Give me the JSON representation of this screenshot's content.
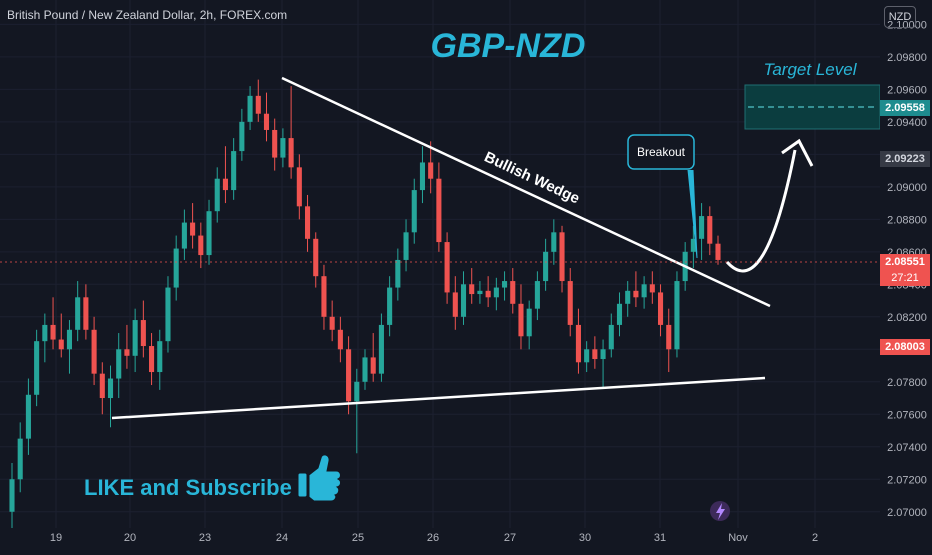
{
  "header": {
    "symbol_title": "British Pound / New Zealand Dollar, 2h, FOREX.com",
    "currency_button": "NZD"
  },
  "chart_data": {
    "type": "candlestick",
    "title": "GBP-NZD",
    "ylim": [
      2.069,
      2.1015
    ],
    "y_ticks": [
      "2.10000",
      "2.09800",
      "2.09600",
      "2.09400",
      "2.09200",
      "2.09000",
      "2.08800",
      "2.08600",
      "2.08400",
      "2.08200",
      "2.08000",
      "2.07800",
      "2.07600",
      "2.07400",
      "2.07200",
      "2.07000"
    ],
    "x_ticks": [
      "19",
      "20",
      "23",
      "24",
      "25",
      "26",
      "27",
      "30",
      "31",
      "Nov",
      "2"
    ],
    "price_tags": {
      "target": "2.09558",
      "prev": "2.09223",
      "current": "2.08551",
      "countdown": "27:21",
      "low": "2.08003"
    },
    "annotations": {
      "wedge": "Bullish Wedge",
      "breakout": "Breakout",
      "target": "Target Level",
      "cta": "LIKE and Subscribe"
    },
    "colors": {
      "up": "#26a69a",
      "down": "#ef5350",
      "title": "#29b6d8",
      "background": "#131722",
      "target_zone": "#0b3d3f"
    },
    "candles": [
      {
        "o": 2.07,
        "h": 2.073,
        "l": 2.069,
        "c": 2.072
      },
      {
        "o": 2.072,
        "h": 2.0755,
        "l": 2.0712,
        "c": 2.0745
      },
      {
        "o": 2.0745,
        "h": 2.0782,
        "l": 2.0735,
        "c": 2.0772
      },
      {
        "o": 2.0772,
        "h": 2.0812,
        "l": 2.0765,
        "c": 2.0805
      },
      {
        "o": 2.0805,
        "h": 2.0822,
        "l": 2.0792,
        "c": 2.0815
      },
      {
        "o": 2.0815,
        "h": 2.0832,
        "l": 2.08,
        "c": 2.0806
      },
      {
        "o": 2.0806,
        "h": 2.0822,
        "l": 2.0795,
        "c": 2.08
      },
      {
        "o": 2.08,
        "h": 2.0818,
        "l": 2.0785,
        "c": 2.0812
      },
      {
        "o": 2.0812,
        "h": 2.0842,
        "l": 2.0805,
        "c": 2.0832
      },
      {
        "o": 2.0832,
        "h": 2.084,
        "l": 2.0806,
        "c": 2.0812
      },
      {
        "o": 2.0812,
        "h": 2.082,
        "l": 2.0778,
        "c": 2.0785
      },
      {
        "o": 2.0785,
        "h": 2.0792,
        "l": 2.076,
        "c": 2.077
      },
      {
        "o": 2.077,
        "h": 2.079,
        "l": 2.0752,
        "c": 2.0782
      },
      {
        "o": 2.0782,
        "h": 2.081,
        "l": 2.077,
        "c": 2.08
      },
      {
        "o": 2.08,
        "h": 2.0815,
        "l": 2.0788,
        "c": 2.0796
      },
      {
        "o": 2.0796,
        "h": 2.0825,
        "l": 2.0786,
        "c": 2.0818
      },
      {
        "o": 2.0818,
        "h": 2.083,
        "l": 2.0795,
        "c": 2.0802
      },
      {
        "o": 2.0802,
        "h": 2.081,
        "l": 2.0778,
        "c": 2.0786
      },
      {
        "o": 2.0786,
        "h": 2.0812,
        "l": 2.0775,
        "c": 2.0805
      },
      {
        "o": 2.0805,
        "h": 2.0845,
        "l": 2.0798,
        "c": 2.0838
      },
      {
        "o": 2.0838,
        "h": 2.087,
        "l": 2.083,
        "c": 2.0862
      },
      {
        "o": 2.0862,
        "h": 2.0886,
        "l": 2.0855,
        "c": 2.0878
      },
      {
        "o": 2.0878,
        "h": 2.089,
        "l": 2.0862,
        "c": 2.087
      },
      {
        "o": 2.087,
        "h": 2.0878,
        "l": 2.085,
        "c": 2.0858
      },
      {
        "o": 2.0858,
        "h": 2.0892,
        "l": 2.0852,
        "c": 2.0885
      },
      {
        "o": 2.0885,
        "h": 2.0912,
        "l": 2.0878,
        "c": 2.0905
      },
      {
        "o": 2.0905,
        "h": 2.0925,
        "l": 2.089,
        "c": 2.0898
      },
      {
        "o": 2.0898,
        "h": 2.093,
        "l": 2.0892,
        "c": 2.0922
      },
      {
        "o": 2.0922,
        "h": 2.0948,
        "l": 2.0916,
        "c": 2.094
      },
      {
        "o": 2.094,
        "h": 2.0962,
        "l": 2.0935,
        "c": 2.0956
      },
      {
        "o": 2.0956,
        "h": 2.0966,
        "l": 2.094,
        "c": 2.0945
      },
      {
        "o": 2.0945,
        "h": 2.0958,
        "l": 2.0928,
        "c": 2.0935
      },
      {
        "o": 2.0935,
        "h": 2.0942,
        "l": 2.091,
        "c": 2.0918
      },
      {
        "o": 2.0918,
        "h": 2.0936,
        "l": 2.0912,
        "c": 2.093
      },
      {
        "o": 2.093,
        "h": 2.0962,
        "l": 2.0905,
        "c": 2.0912
      },
      {
        "o": 2.0912,
        "h": 2.092,
        "l": 2.088,
        "c": 2.0888
      },
      {
        "o": 2.0888,
        "h": 2.0895,
        "l": 2.086,
        "c": 2.0868
      },
      {
        "o": 2.0868,
        "h": 2.0872,
        "l": 2.0838,
        "c": 2.0845
      },
      {
        "o": 2.0845,
        "h": 2.0852,
        "l": 2.0812,
        "c": 2.082
      },
      {
        "o": 2.082,
        "h": 2.083,
        "l": 2.0805,
        "c": 2.0812
      },
      {
        "o": 2.0812,
        "h": 2.082,
        "l": 2.0792,
        "c": 2.08
      },
      {
        "o": 2.08,
        "h": 2.0808,
        "l": 2.076,
        "c": 2.0768
      },
      {
        "o": 2.0768,
        "h": 2.0788,
        "l": 2.0736,
        "c": 2.078
      },
      {
        "o": 2.078,
        "h": 2.08,
        "l": 2.0775,
        "c": 2.0795
      },
      {
        "o": 2.0795,
        "h": 2.081,
        "l": 2.078,
        "c": 2.0785
      },
      {
        "o": 2.0785,
        "h": 2.0822,
        "l": 2.078,
        "c": 2.0815
      },
      {
        "o": 2.0815,
        "h": 2.0845,
        "l": 2.0808,
        "c": 2.0838
      },
      {
        "o": 2.0838,
        "h": 2.0862,
        "l": 2.083,
        "c": 2.0855
      },
      {
        "o": 2.0855,
        "h": 2.088,
        "l": 2.0848,
        "c": 2.0872
      },
      {
        "o": 2.0872,
        "h": 2.0905,
        "l": 2.0865,
        "c": 2.0898
      },
      {
        "o": 2.0898,
        "h": 2.0925,
        "l": 2.089,
        "c": 2.0915
      },
      {
        "o": 2.0915,
        "h": 2.0928,
        "l": 2.0896,
        "c": 2.0905
      },
      {
        "o": 2.0905,
        "h": 2.0915,
        "l": 2.086,
        "c": 2.0866
      },
      {
        "o": 2.0866,
        "h": 2.0872,
        "l": 2.0828,
        "c": 2.0835
      },
      {
        "o": 2.0835,
        "h": 2.0845,
        "l": 2.0812,
        "c": 2.082
      },
      {
        "o": 2.082,
        "h": 2.0848,
        "l": 2.0815,
        "c": 2.084
      },
      {
        "o": 2.084,
        "h": 2.085,
        "l": 2.0828,
        "c": 2.0834
      },
      {
        "o": 2.0834,
        "h": 2.0842,
        "l": 2.0828,
        "c": 2.0836
      },
      {
        "o": 2.0836,
        "h": 2.0845,
        "l": 2.0826,
        "c": 2.0832
      },
      {
        "o": 2.0832,
        "h": 2.0844,
        "l": 2.0824,
        "c": 2.0838
      },
      {
        "o": 2.0838,
        "h": 2.0848,
        "l": 2.083,
        "c": 2.0842
      },
      {
        "o": 2.0842,
        "h": 2.085,
        "l": 2.0822,
        "c": 2.0828
      },
      {
        "o": 2.0828,
        "h": 2.084,
        "l": 2.08,
        "c": 2.0808
      },
      {
        "o": 2.0808,
        "h": 2.083,
        "l": 2.08,
        "c": 2.0825
      },
      {
        "o": 2.0825,
        "h": 2.0848,
        "l": 2.0818,
        "c": 2.0842
      },
      {
        "o": 2.0842,
        "h": 2.0868,
        "l": 2.0836,
        "c": 2.086
      },
      {
        "o": 2.086,
        "h": 2.088,
        "l": 2.0852,
        "c": 2.0872
      },
      {
        "o": 2.0872,
        "h": 2.0876,
        "l": 2.0835,
        "c": 2.0842
      },
      {
        "o": 2.0842,
        "h": 2.085,
        "l": 2.0808,
        "c": 2.0815
      },
      {
        "o": 2.0815,
        "h": 2.0825,
        "l": 2.0785,
        "c": 2.0792
      },
      {
        "o": 2.0792,
        "h": 2.0805,
        "l": 2.0786,
        "c": 2.08
      },
      {
        "o": 2.08,
        "h": 2.0808,
        "l": 2.0788,
        "c": 2.0794
      },
      {
        "o": 2.0794,
        "h": 2.0806,
        "l": 2.0776,
        "c": 2.08
      },
      {
        "o": 2.08,
        "h": 2.0822,
        "l": 2.0795,
        "c": 2.0815
      },
      {
        "o": 2.0815,
        "h": 2.0835,
        "l": 2.0808,
        "c": 2.0828
      },
      {
        "o": 2.0828,
        "h": 2.0842,
        "l": 2.082,
        "c": 2.0836
      },
      {
        "o": 2.0836,
        "h": 2.0848,
        "l": 2.0826,
        "c": 2.0832
      },
      {
        "o": 2.0832,
        "h": 2.0845,
        "l": 2.0825,
        "c": 2.084
      },
      {
        "o": 2.084,
        "h": 2.0848,
        "l": 2.0828,
        "c": 2.0835
      },
      {
        "o": 2.0835,
        "h": 2.084,
        "l": 2.0808,
        "c": 2.0815
      },
      {
        "o": 2.0815,
        "h": 2.0825,
        "l": 2.0786,
        "c": 2.08
      },
      {
        "o": 2.08,
        "h": 2.0848,
        "l": 2.0795,
        "c": 2.0842
      },
      {
        "o": 2.0842,
        "h": 2.0866,
        "l": 2.0836,
        "c": 2.086
      },
      {
        "o": 2.086,
        "h": 2.0876,
        "l": 2.085,
        "c": 2.0868
      },
      {
        "o": 2.0868,
        "h": 2.089,
        "l": 2.0855,
        "c": 2.0882
      },
      {
        "o": 2.0882,
        "h": 2.0888,
        "l": 2.0858,
        "c": 2.0865
      },
      {
        "o": 2.0865,
        "h": 2.087,
        "l": 2.0852,
        "c": 2.0855
      }
    ]
  }
}
